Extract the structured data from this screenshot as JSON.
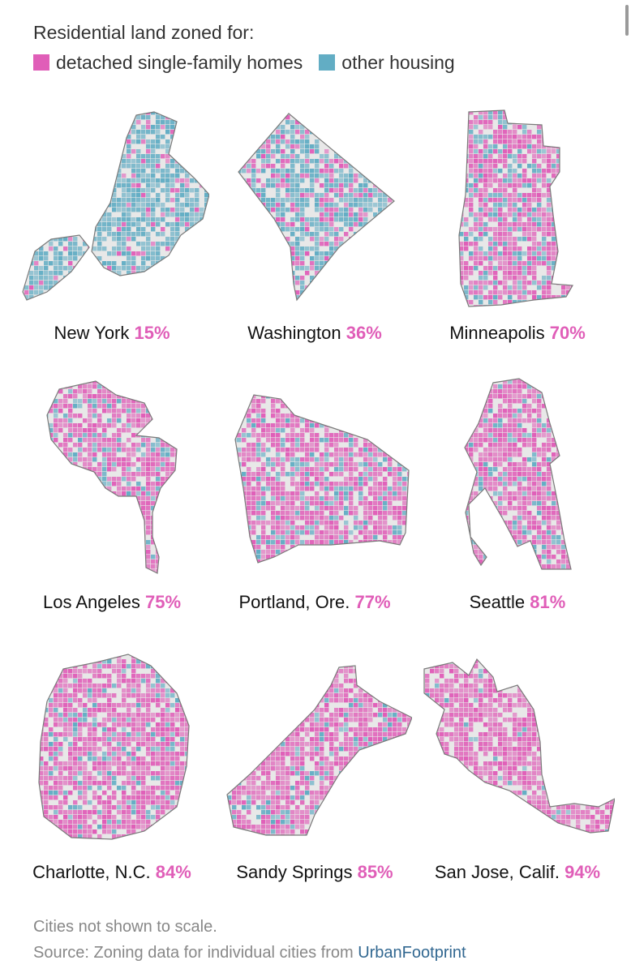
{
  "legend": {
    "title": "Residential land zoned for:",
    "items": [
      {
        "label": "detached single-family homes",
        "color": "#e05eb8"
      },
      {
        "label": "other housing",
        "color": "#62adc4"
      }
    ]
  },
  "colors": {
    "single_family": "#e05eb8",
    "other": "#62adc4",
    "outline": "#7a7a7a",
    "non_residential": "#e8e8e8"
  },
  "cities": [
    {
      "name": "New York",
      "pct": "15%",
      "single_family_share": 0.15
    },
    {
      "name": "Washington",
      "pct": "36%",
      "single_family_share": 0.36
    },
    {
      "name": "Minneapolis",
      "pct": "70%",
      "single_family_share": 0.7
    },
    {
      "name": "Los Angeles",
      "pct": "75%",
      "single_family_share": 0.75
    },
    {
      "name": "Portland, Ore.",
      "pct": "77%",
      "single_family_share": 0.77
    },
    {
      "name": "Seattle",
      "pct": "81%",
      "single_family_share": 0.81
    },
    {
      "name": "Charlotte, N.C.",
      "pct": "84%",
      "single_family_share": 0.84
    },
    {
      "name": "Sandy Springs",
      "pct": "85%",
      "single_family_share": 0.85
    },
    {
      "name": "San Jose, Calif.",
      "pct": "94%",
      "single_family_share": 0.94
    }
  ],
  "footnotes": {
    "scale_note": "Cities not shown to scale.",
    "source_prefix": "Source: Zoning data for individual cities from ",
    "source_link": "UrbanFootprint"
  }
}
